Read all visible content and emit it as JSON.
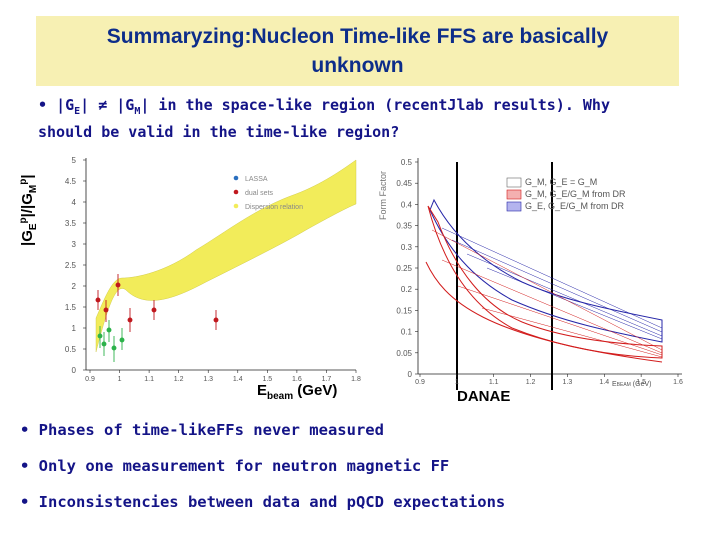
{
  "title": {
    "line1": "Summaryzing:Nucleon Time-like FFS are basically",
    "line2": "unknown"
  },
  "intro": {
    "bullet": "•",
    "ge": "|G",
    "ge_sub": "E",
    "neq": "| ≠ |G",
    "gm_sub": "M",
    "text1": "| in the space-like region (recentJlab results). Why",
    "text2": "should be valid in the time-like region?"
  },
  "left_plot": {
    "ylabel_parts": [
      "|G",
      "E",
      "p",
      "|/|G",
      "M",
      "p",
      "|"
    ],
    "xlabel_main": "E",
    "xlabel_sub": "beam",
    "xlabel_unit": " (GeV)",
    "y_ticks": [
      "5",
      "4.5",
      "4",
      "3.5",
      "3",
      "2.5",
      "2",
      "1.5",
      "1",
      "0.5",
      "0"
    ],
    "x_ticks": [
      "0.9",
      "1",
      "1.1",
      "1.2",
      "1.3",
      "1.4",
      "1.5",
      "1.6",
      "1.7",
      "1.8"
    ],
    "legend": [
      "LASSA",
      "dual sets",
      "Dispersion relation"
    ]
  },
  "right_plot": {
    "ylabel": "Form Factor",
    "y_ticks": [
      "0.5",
      "0.45",
      "0.4",
      "0.35",
      "0.3",
      "0.25",
      "0.2",
      "0.15",
      "0.1",
      "0.05",
      "0"
    ],
    "x_ticks": [
      "0.9",
      "1",
      "1.1",
      "1.2",
      "1.3",
      "1.4",
      "1.5",
      "1.6"
    ],
    "xlabel": "E",
    "xlabel_sub": "BEAM",
    "xlabel_unit": " (GeV)",
    "legend": [
      "G_M, G_E = G_M",
      "G_M, G_E/G_M from DR",
      "G_E, G_E/G_M from DR"
    ],
    "caption": "DANAE"
  },
  "bullets": [
    "• Phases of time-likeFFs never measured",
    "• Only one measurement for neutron magnetic FF",
    "• Inconsistencies between data and pQCD expectations"
  ],
  "colors": {
    "title_bg": "#f7f0b3",
    "title_text": "#0d2d8a",
    "body_text": "#141487",
    "band_yellow": "#f2ec5a",
    "data_red": "#c0181e",
    "data_green": "#2cb24a",
    "band_red": "#d21c1c",
    "band_blue": "#2626a8"
  }
}
